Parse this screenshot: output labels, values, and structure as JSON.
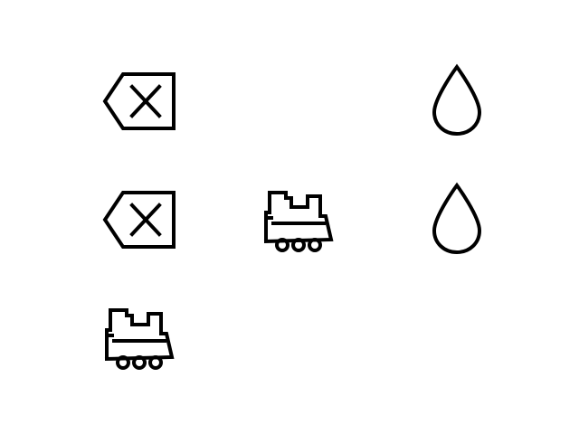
{
  "colors": {
    "background": "#ffffff",
    "icon_stroke": "#000000"
  },
  "icons": [
    {
      "name": "backspace-icon",
      "row": 1,
      "column": 1
    },
    {
      "name": "water-drop-icon",
      "row": 1,
      "column": 3
    },
    {
      "name": "backspace-icon",
      "row": 2,
      "column": 1
    },
    {
      "name": "train-icon",
      "row": 2,
      "column": 2
    },
    {
      "name": "water-drop-icon",
      "row": 2,
      "column": 3
    },
    {
      "name": "train-icon",
      "row": 3,
      "column": 1
    }
  ]
}
